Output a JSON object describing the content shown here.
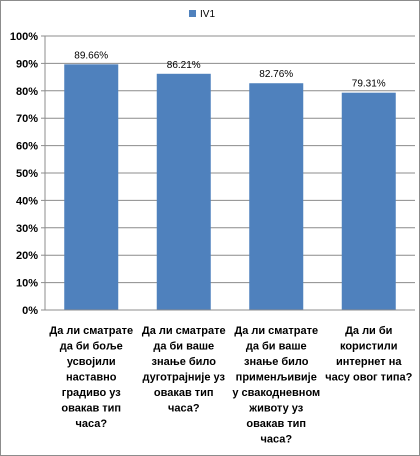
{
  "chart_data": {
    "type": "bar",
    "title": "",
    "xlabel": "",
    "ylabel": "",
    "ylim": [
      0,
      100
    ],
    "y_ticks": [
      "0%",
      "10%",
      "20%",
      "30%",
      "40%",
      "50%",
      "60%",
      "70%",
      "80%",
      "90%",
      "100%"
    ],
    "categories": [
      [
        "Да ли сматрате",
        "да би боље",
        "усвојили",
        "наставно",
        "градиво уз",
        "овакав тип",
        "часа?"
      ],
      [
        "Да ли сматрате",
        "да би ваше",
        "знање било",
        "дуготрајније уз",
        "овакав тип",
        "часа?"
      ],
      [
        "Да ли сматрате",
        "да би ваше",
        "знање било",
        "применљивије",
        "у свакодневном",
        "животу уз",
        "овакав тип",
        "часа?"
      ],
      [
        "Да ли би",
        "користили",
        "интернет на",
        "часу овог типа?"
      ]
    ],
    "series": [
      {
        "name": "IV1",
        "color": "#4f81bd",
        "values": [
          89.66,
          86.21,
          82.76,
          79.31
        ],
        "value_labels": [
          "89.66%",
          "86.21%",
          "82.76%",
          "79.31%"
        ]
      }
    ],
    "grid": true,
    "legend": "top"
  }
}
